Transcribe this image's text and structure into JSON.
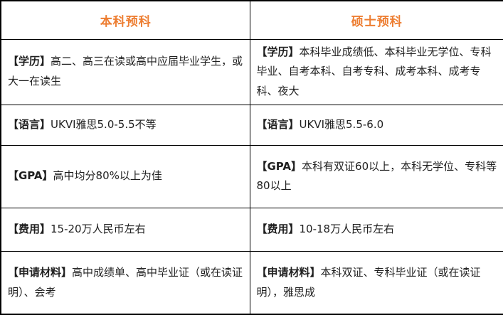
{
  "colors": {
    "accent": "#ED7D31",
    "border": "#000000",
    "text": "#1f1f1f",
    "bg": "#ffffff"
  },
  "table": {
    "header": {
      "left": "本科预科",
      "right": "硕士预科"
    },
    "rows": [
      {
        "left": {
          "label": "【学历】",
          "text": "高二、高三在读或高中应届毕业学生，或大一在读生"
        },
        "right": {
          "label": "【学历】",
          "text": "本科毕业成绩低、本科毕业无学位、专科毕业、自考本科、自考专科、成考本科、成考专科、夜大"
        }
      },
      {
        "left": {
          "label": "【语言】",
          "text": "UKVI雅思5.0-5.5不等"
        },
        "right": {
          "label": "【语言】",
          "text": "UKVI雅思5.5-6.0"
        }
      },
      {
        "left": {
          "label": "【GPA】",
          "text": "高中均分80%以上为佳"
        },
        "right": {
          "label": "【GPA】",
          "text": "本科有双证60以上，本科无学位、专科等80以上"
        }
      },
      {
        "left": {
          "label": "【费用】",
          "text": "15-20万人民币左右"
        },
        "right": {
          "label": "【费用】",
          "text": "10-18万人民币左右"
        }
      },
      {
        "left": {
          "label": "【申请材料】",
          "text": "高中成绩单、高中毕业证（或在读证明）、会考"
        },
        "right": {
          "label": "【申请材料】",
          "text": "本科双证、专科毕业证（或在读证明），雅思成"
        }
      }
    ]
  }
}
